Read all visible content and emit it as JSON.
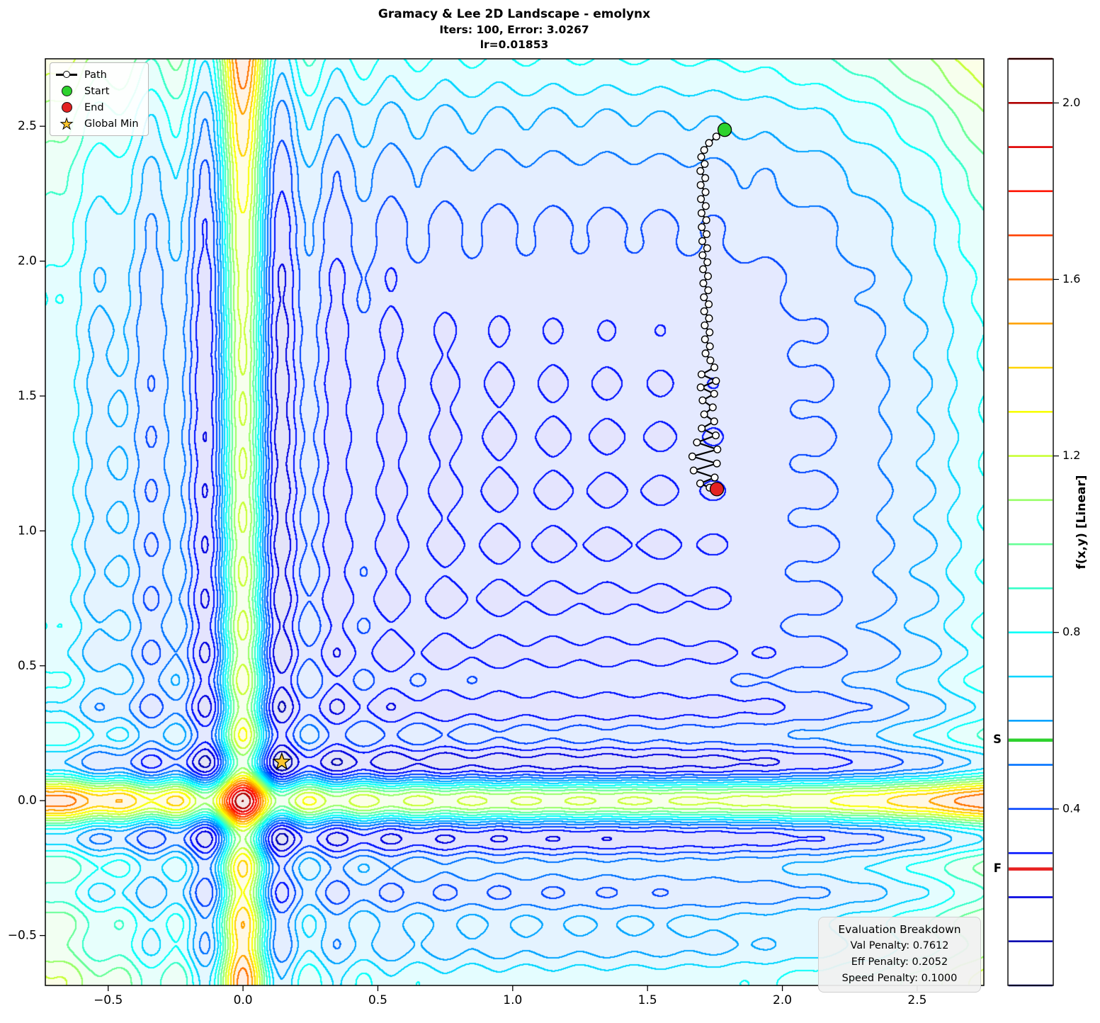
{
  "title": {
    "line1": "Gramacy & Lee 2D Landscape - emolynx",
    "line2": "Iters: 100, Error: 3.0267",
    "line3": "lr=0.01853"
  },
  "legend": {
    "items": [
      {
        "id": "path",
        "label": "Path"
      },
      {
        "id": "start",
        "label": "Start"
      },
      {
        "id": "end",
        "label": "End"
      },
      {
        "id": "global_min",
        "label": "Global Min"
      }
    ]
  },
  "axes": {
    "x_ticks": [
      "−0.5",
      "0.0",
      "0.5",
      "1.0",
      "1.5",
      "2.0",
      "2.5"
    ],
    "x_tick_values": [
      -0.5,
      0.0,
      0.5,
      1.0,
      1.5,
      2.0,
      2.5
    ],
    "y_ticks": [
      "−0.5",
      "0.0",
      "0.5",
      "1.0",
      "1.5",
      "2.0",
      "2.5"
    ],
    "y_tick_values": [
      -0.5,
      0.0,
      0.5,
      1.0,
      1.5,
      2.0,
      2.5
    ]
  },
  "colorbar": {
    "label": "f(x,y) [Linear]",
    "range": [
      0.0,
      2.1
    ],
    "level_step": 0.1,
    "tick_labels": [
      "2.0",
      "1.6",
      "1.2",
      "0.8",
      "0.4"
    ],
    "tick_values": [
      2.0,
      1.6,
      1.2,
      0.8,
      0.4
    ],
    "start_line": {
      "label": "S",
      "value": 0.556,
      "color": "#2dd22d"
    },
    "final_line": {
      "label": "F",
      "value": 0.264,
      "color": "#e82020"
    }
  },
  "evaluation_box": {
    "title": "Evaluation Breakdown",
    "lines": [
      "Val Penalty: 0.7612",
      "Eff Penalty: 0.2052",
      "Speed Penalty: 0.1000"
    ]
  },
  "colors": {
    "start": "#2dd22d",
    "end": "#e32222",
    "global_min": "#fcc52c",
    "path_line": "#000000",
    "path_marker_fill": "#ffffff"
  },
  "chart_data": {
    "type": "contour",
    "title": "Gramacy & Lee 2D Landscape - emolynx",
    "subtitle": "Iters: 100, Error: 3.0267",
    "lr_label": "lr=0.01853",
    "iters": 100,
    "error": 3.0267,
    "lr": 0.01853,
    "function": "Gramacy & Lee 2D: f(x,y) = sin(10πx)/(2x) + (x−1)^4 + sin(10πy)/(2y) + (y−1)^4, normalized linearly to [0, 2.1]",
    "colormap": "jet",
    "contour_levels": {
      "min": 0.0,
      "max": 2.1,
      "step": 0.1
    },
    "xlabel": "",
    "ylabel": "",
    "colorbar_label": "f(x,y) [Linear]",
    "xlim": [
      -0.733,
      2.747
    ],
    "ylim": [
      -0.685,
      2.75
    ],
    "start_point": [
      1.786,
      2.487
    ],
    "end_point": [
      1.757,
      1.155
    ],
    "global_min": [
      0.1437,
      0.1437
    ],
    "colorbar_start_value": 0.556,
    "colorbar_final_value": 0.264,
    "path": [
      [
        1.786,
        2.487
      ],
      [
        1.755,
        2.462
      ],
      [
        1.728,
        2.438
      ],
      [
        1.71,
        2.412
      ],
      [
        1.699,
        2.386
      ],
      [
        1.712,
        2.36
      ],
      [
        1.696,
        2.334
      ],
      [
        1.714,
        2.308
      ],
      [
        1.697,
        2.282
      ],
      [
        1.715,
        2.256
      ],
      [
        1.698,
        2.23
      ],
      [
        1.716,
        2.204
      ],
      [
        1.7,
        2.178
      ],
      [
        1.718,
        2.152
      ],
      [
        1.701,
        2.126
      ],
      [
        1.719,
        2.1
      ],
      [
        1.703,
        2.074
      ],
      [
        1.721,
        2.048
      ],
      [
        1.704,
        2.022
      ],
      [
        1.722,
        1.996
      ],
      [
        1.706,
        1.97
      ],
      [
        1.724,
        1.944
      ],
      [
        1.707,
        1.918
      ],
      [
        1.725,
        1.892
      ],
      [
        1.709,
        1.866
      ],
      [
        1.727,
        1.84
      ],
      [
        1.71,
        1.814
      ],
      [
        1.728,
        1.788
      ],
      [
        1.712,
        1.762
      ],
      [
        1.73,
        1.736
      ],
      [
        1.713,
        1.71
      ],
      [
        1.731,
        1.684
      ],
      [
        1.715,
        1.658
      ],
      [
        1.733,
        1.632
      ],
      [
        1.748,
        1.606
      ],
      [
        1.7,
        1.58
      ],
      [
        1.754,
        1.556
      ],
      [
        1.697,
        1.532
      ],
      [
        1.747,
        1.508
      ],
      [
        1.704,
        1.484
      ],
      [
        1.742,
        1.458
      ],
      [
        1.71,
        1.432
      ],
      [
        1.747,
        1.406
      ],
      [
        1.701,
        1.38
      ],
      [
        1.753,
        1.354
      ],
      [
        1.683,
        1.328
      ],
      [
        1.759,
        1.302
      ],
      [
        1.666,
        1.276
      ],
      [
        1.757,
        1.25
      ],
      [
        1.671,
        1.224
      ],
      [
        1.749,
        1.198
      ],
      [
        1.695,
        1.176
      ],
      [
        1.73,
        1.16
      ],
      [
        1.757,
        1.155
      ]
    ]
  }
}
